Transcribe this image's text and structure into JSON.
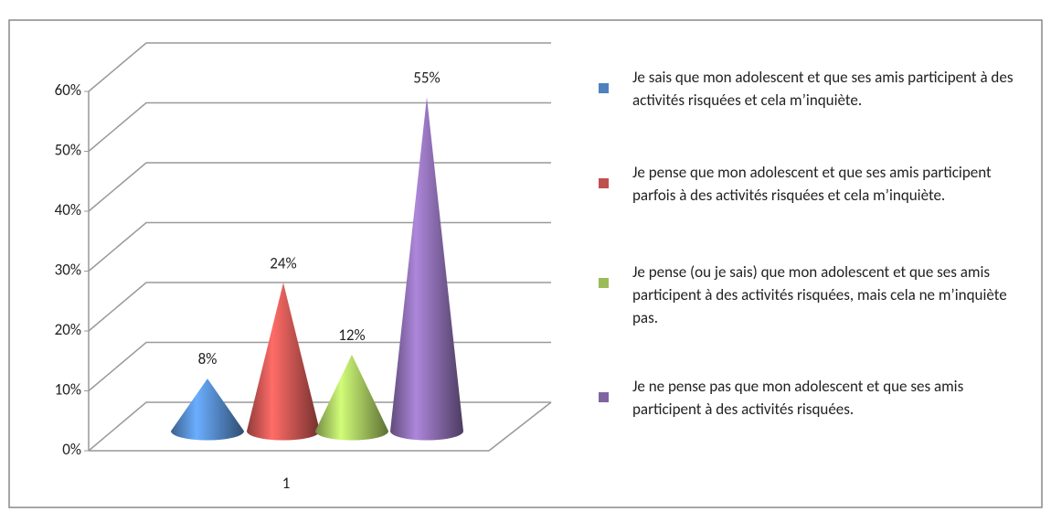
{
  "chart_data": {
    "type": "cone3d",
    "categories": [
      "1"
    ],
    "series": [
      {
        "name": "Je sais que mon adolescent et que ses amis participent à des activités risquées et cela m’inquiète.",
        "color": "#4f81bd",
        "values": [
          8
        ],
        "value_labels": [
          "8%"
        ]
      },
      {
        "name": "Je pense que mon adolescent et que ses amis participent parfois à des activités risquées et cela m’inquiète.",
        "color": "#c0504d",
        "values": [
          24
        ],
        "value_labels": [
          "24%"
        ]
      },
      {
        "name": "Je pense (ou je sais) que mon adolescent et que ses amis participent à des activités risquées, mais cela ne m’inquiète pas.",
        "color": "#9bbb59",
        "values": [
          12
        ],
        "value_labels": [
          "12%"
        ]
      },
      {
        "name": "Je ne pense pas que mon adolescent et que ses amis participent à des activités risquées.",
        "color": "#8064a2",
        "values": [
          55
        ],
        "value_labels": [
          "55%"
        ]
      }
    ],
    "ylim": [
      0,
      60
    ],
    "yticks": [
      {
        "value": 0,
        "label": "0%"
      },
      {
        "value": 10,
        "label": "10%"
      },
      {
        "value": 20,
        "label": "20%"
      },
      {
        "value": 30,
        "label": "30%"
      },
      {
        "value": 40,
        "label": "40%"
      },
      {
        "value": 50,
        "label": "50%"
      },
      {
        "value": 60,
        "label": "60%"
      }
    ],
    "grid": true
  }
}
